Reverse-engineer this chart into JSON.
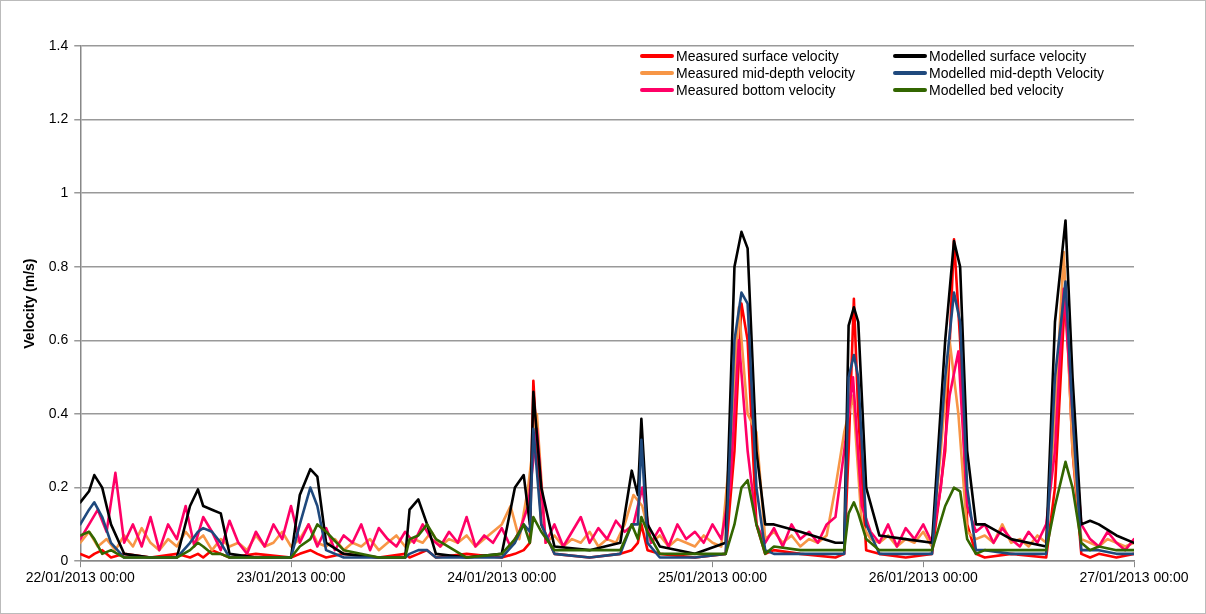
{
  "chart_data": {
    "type": "line",
    "ylabel": "Velocity (m/s)",
    "xlim": [
      "2013-01-22T00:00",
      "2013-01-27T00:00"
    ],
    "xticks": [
      {
        "value": "2013-01-22T00:00",
        "label": "22/01/2013 00:00"
      },
      {
        "value": "2013-01-23T00:00",
        "label": "23/01/2013 00:00"
      },
      {
        "value": "2013-01-24T00:00",
        "label": "24/01/2013 00:00"
      },
      {
        "value": "2013-01-25T00:00",
        "label": "25/01/2013 00:00"
      },
      {
        "value": "2013-01-26T00:00",
        "label": "26/01/2013 00:00"
      },
      {
        "value": "2013-01-27T00:00",
        "label": "27/01/2013 00:00"
      }
    ],
    "ylim": [
      0,
      1.4
    ],
    "yticks": [
      0,
      0.2,
      0.4,
      0.6,
      0.8,
      1,
      1.2,
      1.4
    ],
    "grid": "y",
    "legend": "top right",
    "marker": "none",
    "line_style": "solid",
    "x": [
      "2013-01-22T00:00",
      "2013-01-22T01:00",
      "2013-01-22T01:36",
      "2013-01-22T02:30",
      "2013-01-22T03:30",
      "2013-01-22T05:00",
      "2013-01-22T08:00",
      "2013-01-22T11:00",
      "2013-01-22T12:30",
      "2013-01-22T13:24",
      "2013-01-22T14:00",
      "2013-01-22T15:00",
      "2013-01-22T16:00",
      "2013-01-22T17:00",
      "2013-01-22T20:00",
      "2013-01-23T00:00",
      "2013-01-23T01:00",
      "2013-01-23T02:12",
      "2013-01-23T03:00",
      "2013-01-23T04:00",
      "2013-01-23T06:00",
      "2013-01-23T10:00",
      "2013-01-23T13:00",
      "2013-01-23T13:30",
      "2013-01-23T14:30",
      "2013-01-23T15:30",
      "2013-01-23T16:30",
      "2013-01-23T20:00",
      "2013-01-24T00:00",
      "2013-01-24T01:30",
      "2013-01-24T02:30",
      "2013-01-24T03:12",
      "2013-01-24T03:36",
      "2013-01-24T04:30",
      "2013-01-24T06:00",
      "2013-01-24T10:00",
      "2013-01-24T13:30",
      "2013-01-24T14:48",
      "2013-01-24T15:30",
      "2013-01-24T15:54",
      "2013-01-24T16:36",
      "2013-01-24T18:00",
      "2013-01-24T22:00",
      "2013-01-25T01:30",
      "2013-01-25T02:30",
      "2013-01-25T03:18",
      "2013-01-25T04:00",
      "2013-01-25T05:00",
      "2013-01-25T06:00",
      "2013-01-25T07:00",
      "2013-01-25T10:00",
      "2013-01-25T14:00",
      "2013-01-25T15:00",
      "2013-01-25T15:30",
      "2013-01-25T16:06",
      "2013-01-25T16:36",
      "2013-01-25T17:30",
      "2013-01-25T19:00",
      "2013-01-25T22:00",
      "2013-01-26T01:00",
      "2013-01-26T02:30",
      "2013-01-26T03:30",
      "2013-01-26T04:12",
      "2013-01-26T05:00",
      "2013-01-26T06:00",
      "2013-01-26T07:00",
      "2013-01-26T10:00",
      "2013-01-26T14:00",
      "2013-01-26T15:00",
      "2013-01-26T16:12",
      "2013-01-26T17:00",
      "2013-01-26T18:00",
      "2013-01-26T19:00",
      "2013-01-26T20:00",
      "2013-01-26T22:00",
      "2013-01-27T00:00"
    ],
    "series": [
      {
        "name": "Measured surface velocity",
        "color": "#ff0000",
        "values": [
          0.02,
          0.01,
          0.02,
          0.03,
          0.01,
          0.02,
          0.01,
          0.02,
          0.01,
          0.02,
          0.01,
          0.03,
          0.02,
          0.01,
          0.02,
          0.01,
          0.02,
          0.03,
          0.02,
          0.01,
          0.02,
          0.01,
          0.02,
          0.01,
          0.02,
          0.03,
          0.01,
          0.02,
          0.01,
          0.02,
          0.03,
          0.05,
          0.49,
          0.1,
          0.02,
          0.01,
          0.02,
          0.03,
          0.05,
          0.1,
          0.03,
          0.02,
          0.01,
          0.02,
          0.3,
          0.7,
          0.6,
          0.1,
          0.02,
          0.03,
          0.02,
          0.01,
          0.02,
          0.3,
          0.713,
          0.4,
          0.03,
          0.02,
          0.01,
          0.02,
          0.3,
          0.875,
          0.6,
          0.1,
          0.02,
          0.01,
          0.02,
          0.01,
          0.2,
          0.75,
          0.3,
          0.02,
          0.01,
          0.02,
          0.01,
          0.02
        ]
      },
      {
        "name": "Measured mid-depth velocity",
        "color": "#f79646",
        "x": [
          "2013-01-22T00:00",
          "2013-01-22T01:00",
          "2013-01-22T02:00",
          "2013-01-22T03:00",
          "2013-01-22T04:00",
          "2013-01-22T05:00",
          "2013-01-22T06:00",
          "2013-01-22T07:00",
          "2013-01-22T08:00",
          "2013-01-22T09:00",
          "2013-01-22T10:00",
          "2013-01-22T11:00",
          "2013-01-22T12:00",
          "2013-01-22T13:00",
          "2013-01-22T14:00",
          "2013-01-22T15:00",
          "2013-01-22T16:00",
          "2013-01-22T17:00",
          "2013-01-22T18:00",
          "2013-01-22T19:00",
          "2013-01-22T20:00",
          "2013-01-22T21:00",
          "2013-01-22T22:00",
          "2013-01-22T23:00",
          "2013-01-23T00:00",
          "2013-01-23T01:00",
          "2013-01-23T02:00",
          "2013-01-23T03:00",
          "2013-01-23T04:00",
          "2013-01-23T05:00",
          "2013-01-23T06:00",
          "2013-01-23T07:00",
          "2013-01-23T08:00",
          "2013-01-23T09:00",
          "2013-01-23T10:00",
          "2013-01-23T11:00",
          "2013-01-23T12:00",
          "2013-01-23T13:00",
          "2013-01-23T14:00",
          "2013-01-23T15:00",
          "2013-01-23T16:00",
          "2013-01-23T17:00",
          "2013-01-23T18:00",
          "2013-01-23T19:00",
          "2013-01-23T20:00",
          "2013-01-23T21:00",
          "2013-01-23T22:00",
          "2013-01-23T23:00",
          "2013-01-24T00:00",
          "2013-01-24T01:00",
          "2013-01-24T02:00",
          "2013-01-24T03:00",
          "2013-01-24T04:00",
          "2013-01-24T05:00",
          "2013-01-24T06:00",
          "2013-01-24T07:00",
          "2013-01-24T08:00",
          "2013-01-24T09:00",
          "2013-01-24T10:00",
          "2013-01-24T11:00",
          "2013-01-24T12:00",
          "2013-01-24T13:00",
          "2013-01-24T14:00",
          "2013-01-24T15:00",
          "2013-01-24T16:00",
          "2013-01-24T17:00",
          "2013-01-24T18:00",
          "2013-01-24T19:00",
          "2013-01-24T20:00",
          "2013-01-24T21:00",
          "2013-01-24T22:00",
          "2013-01-24T23:00",
          "2013-01-25T00:00",
          "2013-01-25T01:00",
          "2013-01-25T02:00",
          "2013-01-25T03:00",
          "2013-01-25T04:00",
          "2013-01-25T05:00",
          "2013-01-25T06:00",
          "2013-01-25T07:00",
          "2013-01-25T08:00",
          "2013-01-25T09:00",
          "2013-01-25T10:00",
          "2013-01-25T11:00",
          "2013-01-25T12:00",
          "2013-01-25T13:00",
          "2013-01-25T14:00",
          "2013-01-25T15:00",
          "2013-01-25T16:00",
          "2013-01-25T17:00",
          "2013-01-25T18:00",
          "2013-01-25T19:00",
          "2013-01-25T20:00",
          "2013-01-25T21:00",
          "2013-01-25T22:00",
          "2013-01-25T23:00",
          "2013-01-26T00:00",
          "2013-01-26T01:00",
          "2013-01-26T02:00",
          "2013-01-26T03:00",
          "2013-01-26T04:00",
          "2013-01-26T05:00",
          "2013-01-26T06:00",
          "2013-01-26T07:00",
          "2013-01-26T08:00",
          "2013-01-26T09:00",
          "2013-01-26T10:00",
          "2013-01-26T11:00",
          "2013-01-26T12:00",
          "2013-01-26T13:00",
          "2013-01-26T14:00",
          "2013-01-26T15:00",
          "2013-01-26T16:00",
          "2013-01-26T17:00",
          "2013-01-26T18:00",
          "2013-01-26T19:00",
          "2013-01-26T20:00",
          "2013-01-26T21:00",
          "2013-01-26T22:00",
          "2013-01-26T23:00",
          "2013-01-27T00:00"
        ],
        "values": [
          0.05,
          0.08,
          0.04,
          0.06,
          0.03,
          0.07,
          0.04,
          0.09,
          0.05,
          0.03,
          0.06,
          0.04,
          0.08,
          0.05,
          0.07,
          0.03,
          0.06,
          0.04,
          0.05,
          0.03,
          0.07,
          0.04,
          0.05,
          0.08,
          0.04,
          0.06,
          0.1,
          0.05,
          0.04,
          0.06,
          0.03,
          0.05,
          0.04,
          0.06,
          0.03,
          0.05,
          0.07,
          0.04,
          0.06,
          0.05,
          0.08,
          0.04,
          0.06,
          0.05,
          0.07,
          0.04,
          0.06,
          0.08,
          0.1,
          0.15,
          0.06,
          0.2,
          0.4,
          0.05,
          0.07,
          0.04,
          0.06,
          0.05,
          0.08,
          0.04,
          0.06,
          0.05,
          0.1,
          0.18,
          0.15,
          0.05,
          0.07,
          0.04,
          0.06,
          0.05,
          0.04,
          0.07,
          0.05,
          0.04,
          0.3,
          0.69,
          0.4,
          0.35,
          0.06,
          0.08,
          0.05,
          0.07,
          0.04,
          0.06,
          0.05,
          0.07,
          0.2,
          0.35,
          0.45,
          0.1,
          0.06,
          0.05,
          0.07,
          0.04,
          0.06,
          0.05,
          0.08,
          0.04,
          0.3,
          0.6,
          0.4,
          0.08,
          0.06,
          0.07,
          0.05,
          0.1,
          0.05,
          0.06,
          0.04,
          0.07,
          0.05,
          0.4,
          0.84,
          0.3,
          0.06,
          0.05,
          0.04,
          0.06,
          0.05,
          0.04,
          0.05
        ]
      },
      {
        "name": "Measured bottom velocity",
        "color": "#ff0066",
        "x": [
          "2013-01-22T00:00",
          "2013-01-22T01:00",
          "2013-01-22T02:00",
          "2013-01-22T03:00",
          "2013-01-22T04:00",
          "2013-01-22T05:00",
          "2013-01-22T06:00",
          "2013-01-22T07:00",
          "2013-01-22T08:00",
          "2013-01-22T09:00",
          "2013-01-22T10:00",
          "2013-01-22T11:00",
          "2013-01-22T12:00",
          "2013-01-22T13:00",
          "2013-01-22T14:00",
          "2013-01-22T15:00",
          "2013-01-22T16:00",
          "2013-01-22T17:00",
          "2013-01-22T18:00",
          "2013-01-22T19:00",
          "2013-01-22T20:00",
          "2013-01-22T21:00",
          "2013-01-22T22:00",
          "2013-01-22T23:00",
          "2013-01-23T00:00",
          "2013-01-23T01:00",
          "2013-01-23T02:00",
          "2013-01-23T03:00",
          "2013-01-23T04:00",
          "2013-01-23T05:00",
          "2013-01-23T06:00",
          "2013-01-23T07:00",
          "2013-01-23T08:00",
          "2013-01-23T09:00",
          "2013-01-23T10:00",
          "2013-01-23T11:00",
          "2013-01-23T12:00",
          "2013-01-23T13:00",
          "2013-01-23T14:00",
          "2013-01-23T15:00",
          "2013-01-23T16:00",
          "2013-01-23T17:00",
          "2013-01-23T18:00",
          "2013-01-23T19:00",
          "2013-01-23T20:00",
          "2013-01-23T21:00",
          "2013-01-23T22:00",
          "2013-01-23T23:00",
          "2013-01-24T00:00",
          "2013-01-24T01:00",
          "2013-01-24T02:00",
          "2013-01-24T03:00",
          "2013-01-24T04:00",
          "2013-01-24T05:00",
          "2013-01-24T06:00",
          "2013-01-24T07:00",
          "2013-01-24T08:00",
          "2013-01-24T09:00",
          "2013-01-24T10:00",
          "2013-01-24T11:00",
          "2013-01-24T12:00",
          "2013-01-24T13:00",
          "2013-01-24T14:00",
          "2013-01-24T15:00",
          "2013-01-24T16:00",
          "2013-01-24T17:00",
          "2013-01-24T18:00",
          "2013-01-24T19:00",
          "2013-01-24T20:00",
          "2013-01-24T21:00",
          "2013-01-24T22:00",
          "2013-01-24T23:00",
          "2013-01-25T00:00",
          "2013-01-25T01:00",
          "2013-01-25T02:00",
          "2013-01-25T03:00",
          "2013-01-25T04:00",
          "2013-01-25T05:00",
          "2013-01-25T06:00",
          "2013-01-25T07:00",
          "2013-01-25T08:00",
          "2013-01-25T09:00",
          "2013-01-25T10:00",
          "2013-01-25T11:00",
          "2013-01-25T12:00",
          "2013-01-25T13:00",
          "2013-01-25T14:00",
          "2013-01-25T15:00",
          "2013-01-25T16:00",
          "2013-01-25T17:00",
          "2013-01-25T18:00",
          "2013-01-25T19:00",
          "2013-01-25T20:00",
          "2013-01-25T21:00",
          "2013-01-25T22:00",
          "2013-01-25T23:00",
          "2013-01-26T00:00",
          "2013-01-26T01:00",
          "2013-01-26T02:00",
          "2013-01-26T03:00",
          "2013-01-26T04:00",
          "2013-01-26T05:00",
          "2013-01-26T06:00",
          "2013-01-26T07:00",
          "2013-01-26T08:00",
          "2013-01-26T09:00",
          "2013-01-26T10:00",
          "2013-01-26T11:00",
          "2013-01-26T12:00",
          "2013-01-26T13:00",
          "2013-01-26T14:00",
          "2013-01-26T15:00",
          "2013-01-26T16:00",
          "2013-01-26T17:00",
          "2013-01-26T18:00",
          "2013-01-26T19:00",
          "2013-01-26T20:00",
          "2013-01-26T21:00",
          "2013-01-26T22:00",
          "2013-01-26T23:00",
          "2013-01-27T00:00"
        ],
        "values": [
          0.06,
          0.1,
          0.14,
          0.08,
          0.24,
          0.05,
          0.1,
          0.04,
          0.12,
          0.03,
          0.1,
          0.06,
          0.15,
          0.04,
          0.12,
          0.08,
          0.03,
          0.11,
          0.05,
          0.02,
          0.08,
          0.04,
          0.1,
          0.06,
          0.15,
          0.05,
          0.1,
          0.04,
          0.09,
          0.03,
          0.07,
          0.05,
          0.1,
          0.03,
          0.09,
          0.06,
          0.04,
          0.08,
          0.05,
          0.1,
          0.06,
          0.04,
          0.08,
          0.05,
          0.12,
          0.04,
          0.07,
          0.05,
          0.09,
          0.04,
          0.08,
          0.15,
          0.36,
          0.05,
          0.1,
          0.04,
          0.08,
          0.12,
          0.05,
          0.09,
          0.06,
          0.11,
          0.08,
          0.1,
          0.2,
          0.05,
          0.09,
          0.04,
          0.1,
          0.06,
          0.08,
          0.05,
          0.1,
          0.06,
          0.2,
          0.6,
          0.3,
          0.1,
          0.05,
          0.09,
          0.04,
          0.1,
          0.06,
          0.08,
          0.05,
          0.1,
          0.12,
          0.3,
          0.5,
          0.15,
          0.08,
          0.05,
          0.1,
          0.04,
          0.09,
          0.06,
          0.1,
          0.05,
          0.2,
          0.45,
          0.57,
          0.15,
          0.08,
          0.1,
          0.05,
          0.09,
          0.06,
          0.04,
          0.08,
          0.05,
          0.1,
          0.3,
          0.74,
          0.4,
          0.1,
          0.06,
          0.04,
          0.08,
          0.05,
          0.03,
          0.06
        ]
      },
      {
        "name": "Modelled surface velocity",
        "color": "#000000",
        "values": [
          0.16,
          0.19,
          0.234,
          0.2,
          0.1,
          0.02,
          0.01,
          0.01,
          0.15,
          0.195,
          0.15,
          0.14,
          0.13,
          0.02,
          0.01,
          0.01,
          0.18,
          0.25,
          0.23,
          0.05,
          0.02,
          0.01,
          0.01,
          0.14,
          0.168,
          0.1,
          0.02,
          0.01,
          0.02,
          0.2,
          0.234,
          0.1,
          0.46,
          0.2,
          0.04,
          0.03,
          0.05,
          0.246,
          0.18,
          0.387,
          0.1,
          0.04,
          0.02,
          0.05,
          0.8,
          0.895,
          0.85,
          0.3,
          0.1,
          0.1,
          0.08,
          0.05,
          0.05,
          0.64,
          0.69,
          0.65,
          0.2,
          0.07,
          0.06,
          0.05,
          0.6,
          0.87,
          0.8,
          0.3,
          0.1,
          0.1,
          0.06,
          0.04,
          0.65,
          0.926,
          0.5,
          0.1,
          0.11,
          0.1,
          0.07,
          0.05
        ]
      },
      {
        "name": "Modelled mid-depth Velocity",
        "color": "#1f497d",
        "values": [
          0.1,
          0.14,
          0.16,
          0.12,
          0.05,
          0.01,
          0.01,
          0.01,
          0.05,
          0.08,
          0.09,
          0.08,
          0.05,
          0.01,
          0.01,
          0.01,
          0.1,
          0.2,
          0.15,
          0.03,
          0.01,
          0.01,
          0.01,
          0.02,
          0.03,
          0.03,
          0.01,
          0.01,
          0.01,
          0.05,
          0.1,
          0.08,
          0.36,
          0.1,
          0.02,
          0.01,
          0.02,
          0.1,
          0.1,
          0.33,
          0.05,
          0.01,
          0.01,
          0.02,
          0.6,
          0.73,
          0.7,
          0.2,
          0.03,
          0.02,
          0.02,
          0.02,
          0.02,
          0.5,
          0.56,
          0.5,
          0.1,
          0.02,
          0.02,
          0.02,
          0.5,
          0.73,
          0.65,
          0.2,
          0.03,
          0.03,
          0.02,
          0.02,
          0.5,
          0.76,
          0.4,
          0.03,
          0.03,
          0.03,
          0.02,
          0.02
        ]
      },
      {
        "name": "Modelled bed velocity",
        "color": "#336600",
        "values": [
          0.07,
          0.08,
          0.06,
          0.02,
          0.03,
          0.01,
          0.01,
          0.01,
          0.03,
          0.05,
          0.04,
          0.02,
          0.02,
          0.01,
          0.01,
          0.01,
          0.04,
          0.06,
          0.1,
          0.08,
          0.03,
          0.01,
          0.01,
          0.06,
          0.07,
          0.1,
          0.06,
          0.01,
          0.02,
          0.06,
          0.1,
          0.05,
          0.12,
          0.08,
          0.03,
          0.03,
          0.03,
          0.1,
          0.06,
          0.12,
          0.08,
          0.02,
          0.02,
          0.02,
          0.1,
          0.2,
          0.22,
          0.1,
          0.02,
          0.04,
          0.03,
          0.03,
          0.03,
          0.13,
          0.16,
          0.13,
          0.06,
          0.03,
          0.03,
          0.03,
          0.15,
          0.2,
          0.19,
          0.06,
          0.02,
          0.03,
          0.03,
          0.03,
          0.15,
          0.27,
          0.2,
          0.05,
          0.03,
          0.04,
          0.03,
          0.03
        ]
      }
    ]
  }
}
